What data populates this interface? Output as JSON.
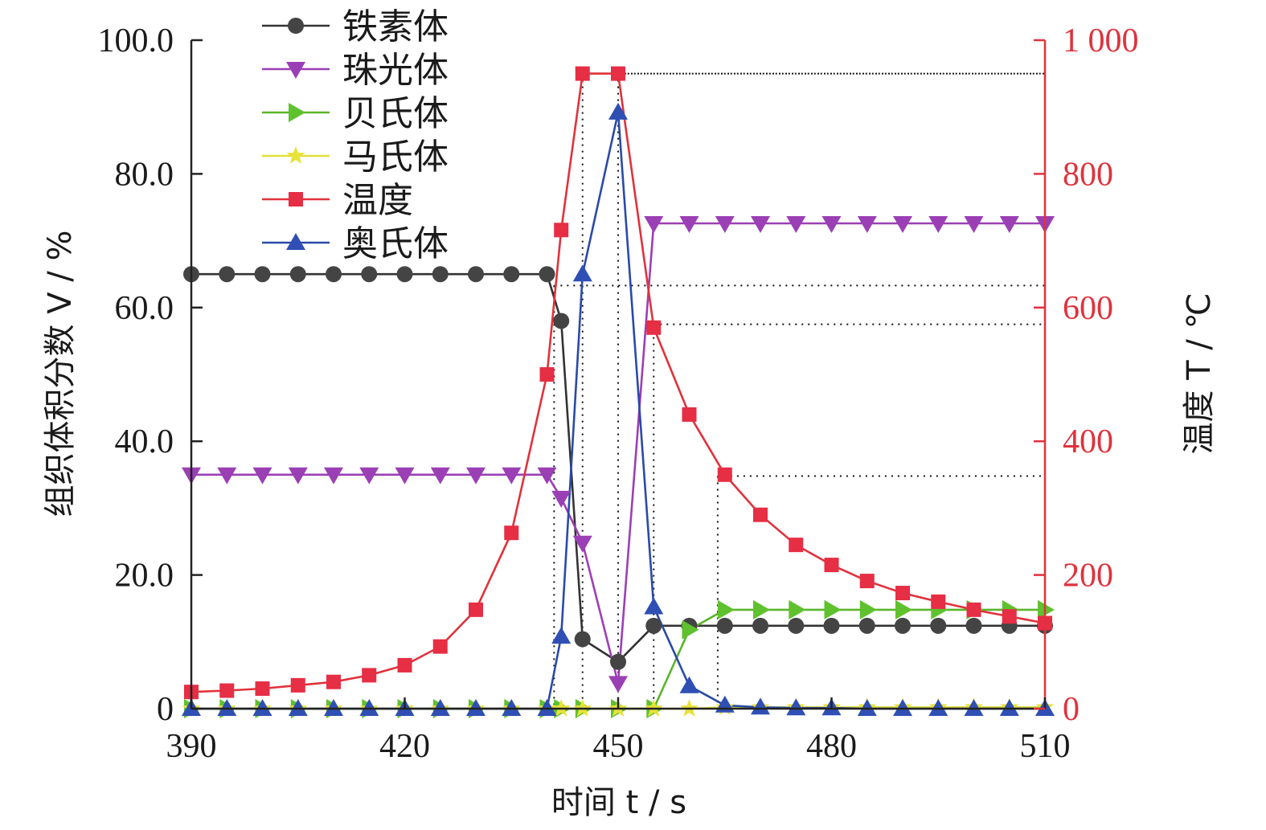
{
  "chart_data": {
    "type": "line",
    "x_ticks": [
      390,
      420,
      450,
      480,
      510
    ],
    "x_label": "时间 t / s",
    "xlim": [
      390,
      510
    ],
    "y_left": {
      "label": "组织体积分数 V / %",
      "lim": [
        0,
        100
      ],
      "ticks": [
        0,
        20,
        40,
        60,
        80,
        100
      ],
      "tick_labels": [
        "0",
        "20.0",
        "40.0",
        "60.0",
        "80.0",
        "100.0"
      ]
    },
    "y_right": {
      "label": "温度 T / ℃",
      "lim": [
        0,
        1000
      ],
      "ticks": [
        0,
        200,
        400,
        600,
        800,
        1000
      ],
      "tick_labels": [
        "0",
        "200",
        "400",
        "600",
        "800",
        "1 000"
      ],
      "color": "#e0323c"
    },
    "legend": {
      "position": "top-left"
    },
    "series": [
      {
        "name": "铁素体",
        "axis": "left",
        "marker": "circle",
        "color": "#333333",
        "marker_color": "#444444",
        "x": [
          390,
          395,
          400,
          405,
          410,
          415,
          420,
          425,
          430,
          435,
          440,
          442,
          445,
          450,
          455,
          460,
          465,
          470,
          475,
          480,
          485,
          490,
          495,
          500,
          505,
          510
        ],
        "y": [
          65,
          65,
          65,
          65,
          65,
          65,
          65,
          65,
          65,
          65,
          65,
          58,
          10.4,
          7,
          12.4,
          12.4,
          12.4,
          12.4,
          12.4,
          12.4,
          12.4,
          12.4,
          12.4,
          12.4,
          12.4,
          12.4
        ]
      },
      {
        "name": "珠光体",
        "axis": "left",
        "marker": "triangle-down",
        "color": "#9b3fb5",
        "marker_color": "#9b3fb5",
        "x": [
          390,
          395,
          400,
          405,
          410,
          415,
          420,
          425,
          430,
          435,
          440,
          442,
          445,
          450,
          455,
          460,
          465,
          470,
          475,
          480,
          485,
          490,
          495,
          500,
          505,
          510
        ],
        "y": [
          35,
          35,
          35,
          35,
          35,
          35,
          35,
          35,
          35,
          35,
          35,
          31.5,
          24.8,
          3.8,
          72.6,
          72.6,
          72.6,
          72.6,
          72.6,
          72.6,
          72.6,
          72.6,
          72.6,
          72.6,
          72.6,
          72.6
        ]
      },
      {
        "name": "贝氏体",
        "axis": "left",
        "marker": "triangle-right",
        "color": "#5ab52a",
        "marker_color": "#5fc12e",
        "x": [
          390,
          395,
          400,
          405,
          410,
          415,
          420,
          425,
          430,
          435,
          440,
          442,
          445,
          450,
          455,
          460,
          465,
          470,
          475,
          480,
          485,
          490,
          495,
          500,
          505,
          510
        ],
        "y": [
          0,
          0,
          0,
          0,
          0,
          0,
          0,
          0,
          0,
          0,
          0,
          0,
          0,
          0,
          0,
          11.8,
          14.8,
          14.8,
          14.8,
          14.8,
          14.8,
          14.8,
          14.8,
          14.8,
          14.8,
          14.8
        ]
      },
      {
        "name": "马氏体",
        "axis": "left",
        "marker": "star",
        "color": "#e3e03a",
        "marker_color": "#e8e23a",
        "x": [
          390,
          395,
          400,
          405,
          410,
          415,
          420,
          425,
          430,
          435,
          440,
          442,
          445,
          450,
          455,
          460,
          465,
          470,
          475,
          480,
          485,
          490,
          495,
          500,
          505,
          510
        ],
        "y": [
          0,
          0,
          0,
          0,
          0,
          0,
          0,
          0,
          0,
          0,
          0,
          0,
          0,
          0,
          0,
          0,
          0.2,
          0.2,
          0.2,
          0.2,
          0.2,
          0.2,
          0.2,
          0.2,
          0.2,
          0.2
        ]
      },
      {
        "name": "温度",
        "axis": "right",
        "marker": "square",
        "color": "#e0323c",
        "marker_color": "#e62e44",
        "x": [
          390,
          395,
          400,
          405,
          410,
          415,
          420,
          425,
          430,
          435,
          440,
          442,
          445,
          450,
          455,
          460,
          465,
          470,
          475,
          480,
          485,
          490,
          495,
          500,
          505,
          510
        ],
        "y": [
          25,
          27,
          30,
          35,
          40,
          50,
          65,
          93,
          148,
          263,
          500,
          716,
          950,
          950,
          570,
          440,
          350,
          290,
          245,
          215,
          191,
          173,
          160,
          148,
          138,
          128
        ]
      },
      {
        "name": "奥氏体",
        "axis": "left",
        "marker": "triangle-up",
        "color": "#2a4aa8",
        "marker_color": "#2f4fb4",
        "x": [
          390,
          395,
          400,
          405,
          410,
          415,
          420,
          425,
          430,
          435,
          440,
          442,
          445,
          450,
          455,
          460,
          465,
          470,
          475,
          480,
          485,
          490,
          495,
          500,
          505,
          510
        ],
        "y": [
          0,
          0,
          0,
          0,
          0,
          0,
          0,
          0,
          0,
          0,
          0,
          10.8,
          65,
          89.2,
          15.2,
          3.4,
          0.5,
          0.2,
          0.1,
          0.1,
          0,
          0,
          0,
          0,
          0,
          0
        ]
      }
    ],
    "reference_lines": {
      "axis": "right",
      "style": "dotted",
      "lines": [
        {
          "x": 441,
          "y": 633
        },
        {
          "x": 445,
          "y": 950
        },
        {
          "x": 450,
          "y": 950
        },
        {
          "x": 455,
          "y": 575
        },
        {
          "x": 464,
          "y": 348
        }
      ]
    }
  }
}
